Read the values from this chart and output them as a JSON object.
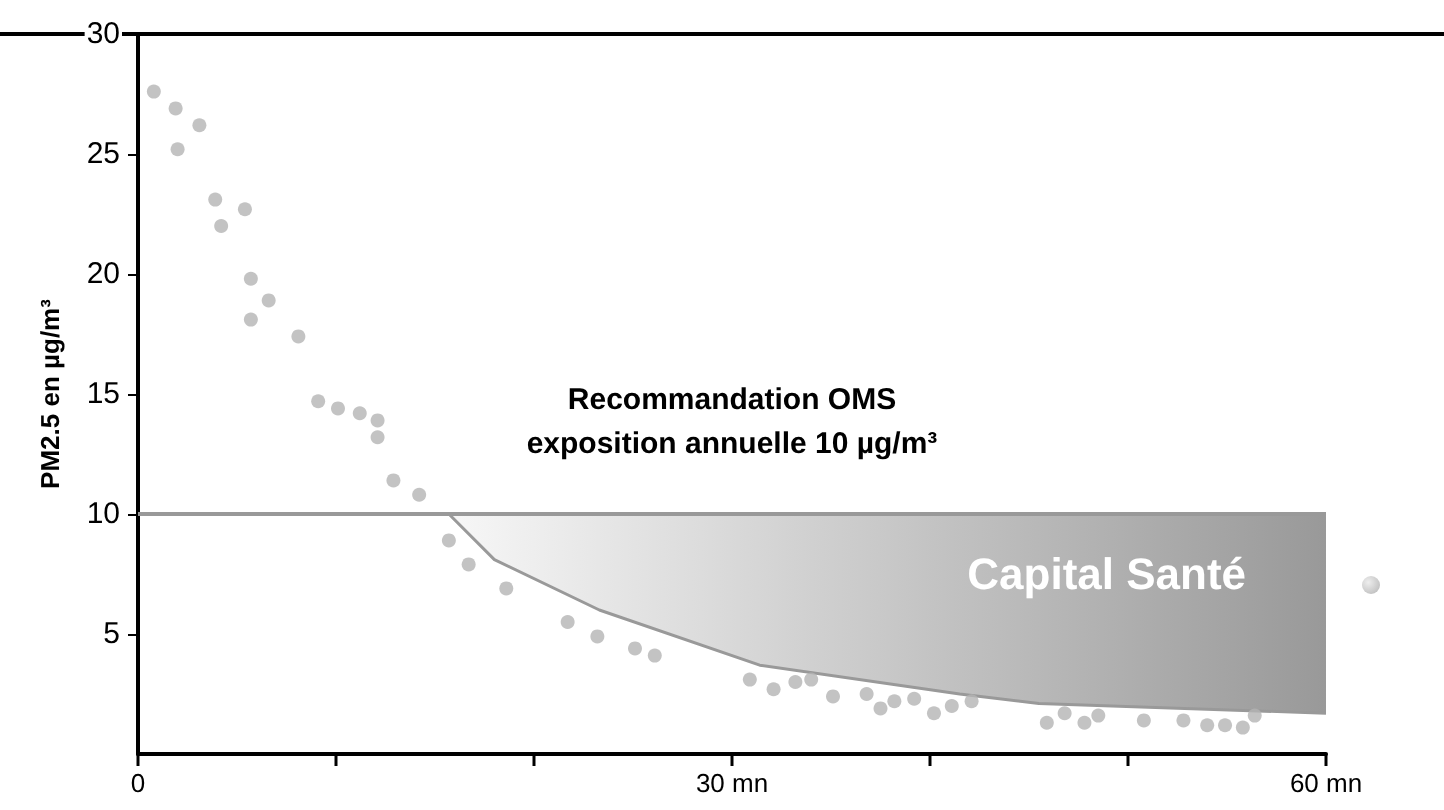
{
  "chart_data": {
    "type": "scatter",
    "ylabel": "PM2.5 en µg/m³",
    "xlim": [
      0,
      60
    ],
    "xticks": [
      0,
      {
        "value": 10,
        "label": null
      },
      {
        "value": 20,
        "label": null
      },
      {
        "value": 30,
        "label": "30 mn"
      },
      {
        "value": 40,
        "label": null
      },
      {
        "value": 50,
        "label": null
      },
      {
        "value": 60,
        "label": "60 mn"
      }
    ],
    "ylim": [
      0,
      30
    ],
    "yticks": [
      5,
      10,
      15,
      20,
      25,
      30
    ],
    "grid": false,
    "marker": "circle",
    "annotations": [
      "Capital Santé"
    ],
    "ref_lines": [
      {
        "axis": "y",
        "value": 10,
        "label": "Recommandation OMS\nexposition annuelle 10 µg/m³",
        "color": "#999999"
      }
    ],
    "series": [
      {
        "type": "line",
        "marker": "none",
        "color": "#999999",
        "x": [
          15.7,
          18,
          23.3,
          31.4,
          41.5,
          45.5,
          60
        ],
        "values": [
          10,
          8.1,
          6.0,
          3.7,
          2.5,
          2.1,
          1.7
        ],
        "upper": [
          10,
          10,
          10,
          10,
          10,
          10,
          10
        ],
        "lower": [
          10,
          8.1,
          6.0,
          3.7,
          2.5,
          2.1,
          1.7
        ]
      },
      {
        "color": "#b4b4b4",
        "x": [
          0.8,
          1.9,
          2.0,
          3.1,
          3.9,
          4.2,
          5.4,
          5.7,
          5.7,
          6.6,
          8.1,
          9.1,
          10.1,
          11.2,
          12.1,
          12.1,
          12.9,
          14.2,
          15.7,
          16.7,
          18.6,
          21.7,
          23.2,
          25.1,
          26.1,
          30.9,
          32.1,
          33.2,
          34.0,
          35.1,
          36.8,
          37.5,
          38.2,
          39.2,
          40.2,
          41.1,
          42.1,
          45.9,
          46.8,
          47.8,
          48.5,
          50.8,
          52.8,
          54.0,
          54.9,
          55.8,
          56.4
        ],
        "values": [
          27.6,
          26.9,
          25.2,
          26.2,
          23.1,
          22.0,
          22.7,
          19.8,
          18.1,
          18.9,
          17.4,
          14.7,
          14.4,
          14.2,
          13.9,
          13.2,
          11.4,
          10.8,
          8.9,
          7.9,
          6.9,
          5.5,
          4.9,
          4.4,
          4.1,
          3.1,
          2.7,
          3.0,
          3.1,
          2.4,
          2.5,
          1.9,
          2.2,
          2.3,
          1.7,
          2.0,
          2.2,
          1.3,
          1.7,
          1.3,
          1.6,
          1.4,
          1.4,
          1.2,
          1.2,
          1.1,
          1.6
        ]
      }
    ]
  }
}
